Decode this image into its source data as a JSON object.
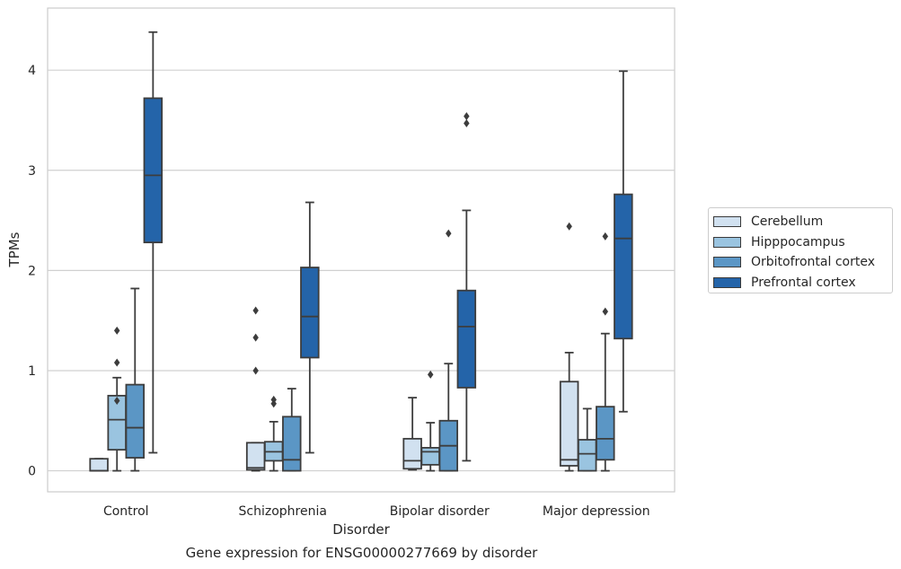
{
  "chart_data": {
    "type": "box",
    "xlabel": "Disorder",
    "ylabel": "TPMs",
    "caption": "Gene expression for ENSG00000277669 by disorder",
    "ylim": [
      -0.21,
      4.62
    ],
    "yticks": [
      0,
      1,
      2,
      3,
      4
    ],
    "categories": [
      "Control",
      "Schizophrenia",
      "Bipolar disorder",
      "Major depression"
    ],
    "grid": true,
    "legend_position": "right",
    "series": [
      {
        "name": "Cerebellum",
        "color": "#d1e1f0",
        "boxes": [
          {
            "min": 0,
            "q1": 0,
            "median": 0,
            "q3": 0.12,
            "max": 0.12,
            "outliers": []
          },
          {
            "min": 0,
            "q1": 0.01,
            "median": 0.03,
            "q3": 0.28,
            "max": 0.28,
            "outliers": [
              1.0,
              1.33,
              1.6
            ]
          },
          {
            "min": 0.01,
            "q1": 0.02,
            "median": 0.1,
            "q3": 0.32,
            "max": 0.73,
            "outliers": []
          },
          {
            "min": 0,
            "q1": 0.05,
            "median": 0.11,
            "q3": 0.89,
            "max": 1.18,
            "outliers": [
              2.44
            ]
          }
        ]
      },
      {
        "name": "Hipppocampus",
        "color": "#9ac4e0",
        "boxes": [
          {
            "min": 0,
            "q1": 0.21,
            "median": 0.51,
            "q3": 0.75,
            "max": 0.93,
            "outliers": [
              0.7,
              1.08,
              1.4
            ]
          },
          {
            "min": 0,
            "q1": 0.1,
            "median": 0.19,
            "q3": 0.29,
            "max": 0.49,
            "outliers": [
              0.67,
              0.71
            ]
          },
          {
            "min": 0,
            "q1": 0.06,
            "median": 0.19,
            "q3": 0.23,
            "max": 0.48,
            "outliers": [
              0.96
            ]
          },
          {
            "min": 0,
            "q1": 0,
            "median": 0.17,
            "q3": 0.31,
            "max": 0.62,
            "outliers": []
          }
        ]
      },
      {
        "name": "Orbitofrontal cortex",
        "color": "#5b96c5",
        "boxes": [
          {
            "min": 0,
            "q1": 0.13,
            "median": 0.43,
            "q3": 0.86,
            "max": 1.82,
            "outliers": []
          },
          {
            "min": 0,
            "q1": 0,
            "median": 0.11,
            "q3": 0.54,
            "max": 0.82,
            "outliers": []
          },
          {
            "min": 0,
            "q1": 0,
            "median": 0.25,
            "q3": 0.5,
            "max": 1.07,
            "outliers": [
              2.37
            ]
          },
          {
            "min": 0,
            "q1": 0.11,
            "median": 0.32,
            "q3": 0.64,
            "max": 1.37,
            "outliers": [
              1.59,
              2.34
            ]
          }
        ]
      },
      {
        "name": "Prefrontal cortex",
        "color": "#2464a9",
        "boxes": [
          {
            "min": 0.18,
            "q1": 2.28,
            "median": 2.95,
            "q3": 3.72,
            "max": 4.38,
            "outliers": []
          },
          {
            "min": 0.18,
            "q1": 1.13,
            "median": 1.54,
            "q3": 2.03,
            "max": 2.68,
            "outliers": []
          },
          {
            "min": 0.1,
            "q1": 0.83,
            "median": 1.44,
            "q3": 1.8,
            "max": 2.6,
            "outliers": [
              3.47,
              3.54
            ]
          },
          {
            "min": 0.59,
            "q1": 1.32,
            "median": 2.32,
            "q3": 2.76,
            "max": 3.99,
            "outliers": []
          }
        ]
      }
    ]
  }
}
